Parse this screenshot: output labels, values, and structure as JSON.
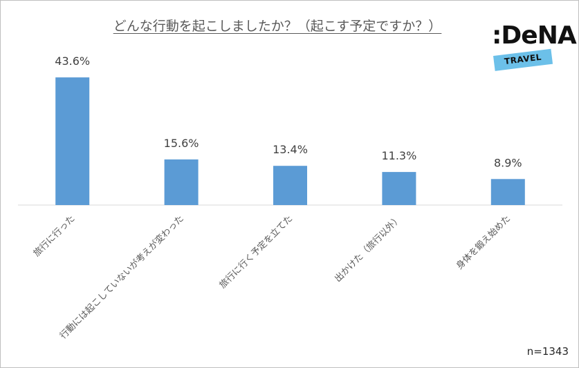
{
  "header": {
    "title": "どんな行動を起こしましたか？（起こす予定ですか？）"
  },
  "brand": {
    "logo_text": ":DeNA",
    "logo_sub": "TRAVEL",
    "band_color": "#6cc0e9"
  },
  "footer": {
    "sample_size": "n=1343"
  },
  "chart_data": {
    "type": "bar",
    "categories": [
      "旅行に行った",
      "行動には起こしていないが考えが変わった",
      "旅行に行く予定を立てた",
      "出かけた（旅行以外）",
      "身体を鍛え始めた"
    ],
    "values": [
      43.6,
      15.6,
      13.4,
      11.3,
      8.9
    ],
    "value_labels": [
      "43.6%",
      "15.6%",
      "13.4%",
      "11.3%",
      "8.9%"
    ],
    "ylim": [
      0,
      50
    ],
    "grid": false,
    "bar_color": "#5b9bd5"
  }
}
